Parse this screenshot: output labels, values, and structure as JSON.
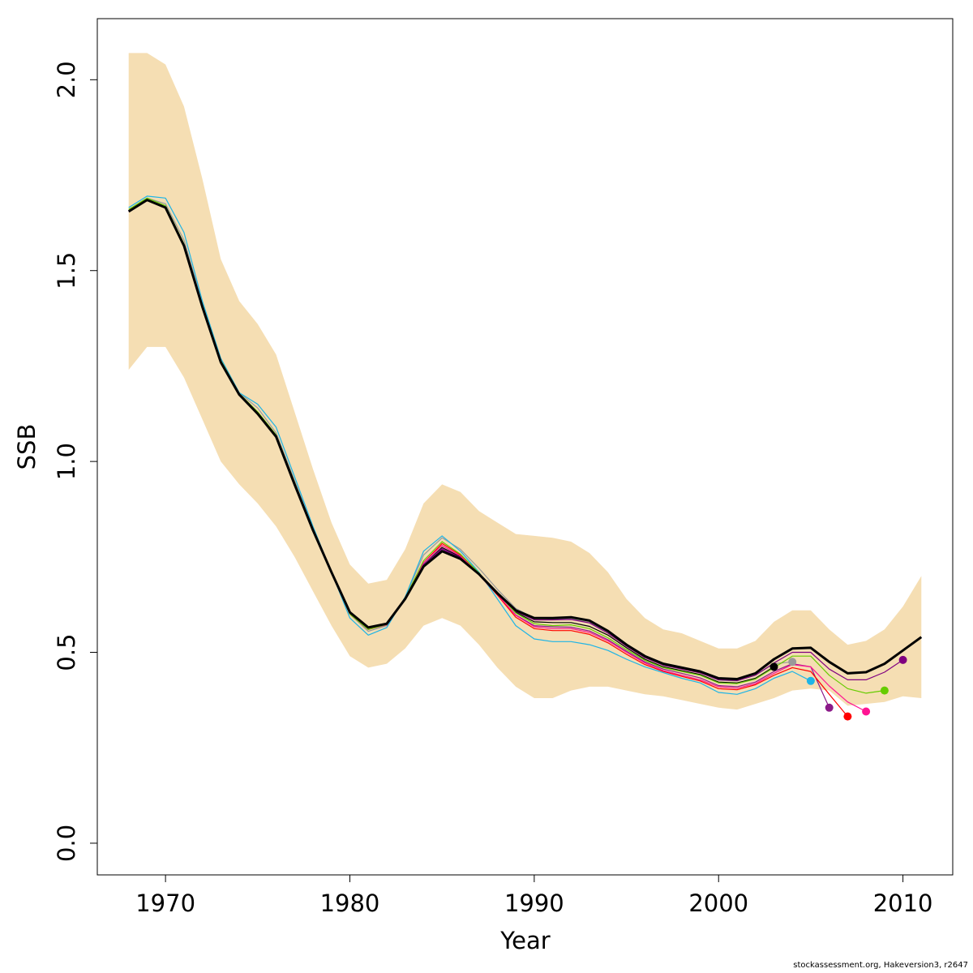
{
  "chart_data": {
    "type": "line",
    "title": "",
    "xlabel": "Year",
    "ylabel": "SSB",
    "xlim": [
      1966.3,
      2012.7
    ],
    "ylim": [
      -0.083,
      2.16
    ],
    "x_ticks": [
      1970,
      1980,
      1990,
      2000,
      2010
    ],
    "y_ticks": [
      0.0,
      0.5,
      1.0,
      1.5,
      2.0
    ],
    "y_tick_labels": [
      "0.0",
      "0.5",
      "1.0",
      "1.5",
      "2.0"
    ],
    "grid": false,
    "legend": "none",
    "band": {
      "color": "#F5DEB3",
      "years": [
        1968,
        1969,
        1970,
        1971,
        1972,
        1973,
        1974,
        1975,
        1976,
        1977,
        1978,
        1979,
        1980,
        1981,
        1982,
        1983,
        1984,
        1985,
        1986,
        1987,
        1988,
        1989,
        1990,
        1991,
        1992,
        1993,
        1994,
        1995,
        1996,
        1997,
        1998,
        1999,
        2000,
        2001,
        2002,
        2003,
        2004,
        2005,
        2006,
        2007,
        2008,
        2009,
        2010,
        2011
      ],
      "upper": [
        2.07,
        2.07,
        2.04,
        1.93,
        1.74,
        1.53,
        1.42,
        1.36,
        1.28,
        1.13,
        0.98,
        0.84,
        0.73,
        0.68,
        0.69,
        0.77,
        0.89,
        0.94,
        0.92,
        0.87,
        0.84,
        0.81,
        0.805,
        0.8,
        0.79,
        0.76,
        0.71,
        0.64,
        0.59,
        0.56,
        0.55,
        0.53,
        0.51,
        0.51,
        0.53,
        0.58,
        0.61,
        0.61,
        0.56,
        0.52,
        0.53,
        0.56,
        0.62,
        0.7
      ],
      "lower": [
        1.24,
        1.3,
        1.3,
        1.22,
        1.11,
        1.0,
        0.94,
        0.89,
        0.83,
        0.75,
        0.66,
        0.57,
        0.49,
        0.46,
        0.47,
        0.51,
        0.57,
        0.59,
        0.57,
        0.52,
        0.46,
        0.41,
        0.38,
        0.38,
        0.4,
        0.41,
        0.41,
        0.4,
        0.39,
        0.385,
        0.375,
        0.365,
        0.355,
        0.35,
        0.365,
        0.38,
        0.4,
        0.405,
        0.4,
        0.36,
        0.365,
        0.37,
        0.385,
        0.38
      ]
    },
    "series": [
      {
        "color": "#000000",
        "width": 3,
        "end_marker": true,
        "values": [
          1.655,
          1.685,
          1.665,
          1.565,
          1.405,
          1.26,
          1.175,
          1.125,
          1.065,
          0.94,
          0.82,
          0.71,
          0.605,
          0.565,
          0.575,
          0.64,
          0.725,
          0.765,
          0.745,
          0.705,
          0.655,
          0.61,
          0.59,
          0.59,
          0.592,
          0.583,
          0.556,
          0.52,
          0.49,
          0.47,
          0.46,
          0.45,
          0.432,
          0.43,
          0.445,
          0.482,
          0.51,
          0.512,
          0.475,
          0.445,
          0.448,
          0.47,
          0.505,
          0.54
        ]
      },
      {
        "color": "#000000",
        "width": 1.2,
        "end_marker": true,
        "values": [
          1.655,
          1.685,
          1.665,
          1.565,
          1.405,
          1.26,
          1.175,
          1.125,
          1.065,
          0.94,
          0.82,
          0.71,
          0.605,
          0.565,
          0.575,
          0.64,
          0.73,
          0.775,
          0.75,
          0.705,
          0.655,
          0.605,
          0.58,
          0.578,
          0.578,
          0.568,
          0.545,
          0.512,
          0.482,
          0.462,
          0.452,
          0.442,
          0.422,
          0.42,
          0.432,
          0.462
        ]
      },
      {
        "color": "#999999",
        "width": 1.2,
        "end_marker": true,
        "values": [
          1.66,
          1.69,
          1.675,
          1.58,
          1.415,
          1.27,
          1.18,
          1.14,
          1.075,
          0.95,
          0.825,
          0.71,
          0.6,
          0.555,
          0.57,
          0.645,
          0.755,
          0.8,
          0.77,
          0.72,
          0.665,
          0.615,
          0.59,
          0.587,
          0.588,
          0.578,
          0.553,
          0.518,
          0.488,
          0.467,
          0.457,
          0.447,
          0.427,
          0.425,
          0.44,
          0.47,
          0.475
        ]
      },
      {
        "color": "#1EB4E6",
        "width": 1.2,
        "end_marker": true,
        "values": [
          1.665,
          1.695,
          1.69,
          1.6,
          1.42,
          1.27,
          1.18,
          1.15,
          1.09,
          0.96,
          0.83,
          0.71,
          0.59,
          0.545,
          0.565,
          0.645,
          0.765,
          0.805,
          0.765,
          0.71,
          0.64,
          0.57,
          0.535,
          0.528,
          0.528,
          0.52,
          0.505,
          0.482,
          0.462,
          0.447,
          0.432,
          0.42,
          0.395,
          0.39,
          0.405,
          0.432,
          0.45,
          0.425
        ]
      },
      {
        "color": "#8B1A89",
        "width": 1.2,
        "end_marker": true,
        "values": [
          1.655,
          1.685,
          1.665,
          1.565,
          1.405,
          1.26,
          1.175,
          1.125,
          1.065,
          0.94,
          0.82,
          0.71,
          0.605,
          0.56,
          0.572,
          0.64,
          0.73,
          0.77,
          0.745,
          0.703,
          0.65,
          0.598,
          0.57,
          0.567,
          0.566,
          0.556,
          0.533,
          0.503,
          0.475,
          0.456,
          0.445,
          0.433,
          0.413,
          0.41,
          0.422,
          0.45,
          0.47,
          0.462,
          0.355
        ]
      },
      {
        "color": "#FF0000",
        "width": 1.2,
        "end_marker": true,
        "values": [
          1.655,
          1.685,
          1.665,
          1.565,
          1.405,
          1.26,
          1.175,
          1.125,
          1.065,
          0.94,
          0.82,
          0.71,
          0.6,
          0.56,
          0.572,
          0.64,
          0.735,
          0.785,
          0.755,
          0.705,
          0.65,
          0.592,
          0.562,
          0.557,
          0.557,
          0.547,
          0.525,
          0.495,
          0.468,
          0.45,
          0.437,
          0.425,
          0.405,
          0.402,
          0.415,
          0.44,
          0.46,
          0.45,
          0.39,
          0.332
        ]
      },
      {
        "color": "#FF1493",
        "width": 1.2,
        "end_marker": true,
        "values": [
          1.655,
          1.685,
          1.665,
          1.565,
          1.405,
          1.26,
          1.175,
          1.125,
          1.065,
          0.94,
          0.82,
          0.71,
          0.6,
          0.56,
          0.572,
          0.64,
          0.735,
          0.78,
          0.752,
          0.705,
          0.652,
          0.597,
          0.567,
          0.562,
          0.562,
          0.552,
          0.53,
          0.5,
          0.472,
          0.452,
          0.44,
          0.428,
          0.41,
          0.406,
          0.418,
          0.445,
          0.468,
          0.462,
          0.412,
          0.37,
          0.345
        ]
      },
      {
        "color": "#66CC00",
        "width": 1.2,
        "end_marker": true,
        "values": [
          1.66,
          1.69,
          1.67,
          1.57,
          1.41,
          1.265,
          1.178,
          1.13,
          1.07,
          0.945,
          0.823,
          0.71,
          0.6,
          0.56,
          0.573,
          0.642,
          0.74,
          0.79,
          0.757,
          0.708,
          0.655,
          0.603,
          0.575,
          0.57,
          0.572,
          0.562,
          0.538,
          0.507,
          0.479,
          0.46,
          0.45,
          0.44,
          0.42,
          0.418,
          0.43,
          0.46,
          0.49,
          0.49,
          0.44,
          0.405,
          0.393,
          0.4
        ]
      },
      {
        "color": "#800080",
        "width": 1.2,
        "end_marker": true,
        "values": [
          1.655,
          1.685,
          1.665,
          1.565,
          1.405,
          1.26,
          1.175,
          1.125,
          1.065,
          0.94,
          0.82,
          0.71,
          0.605,
          0.565,
          0.575,
          0.64,
          0.73,
          0.772,
          0.748,
          0.705,
          0.654,
          0.607,
          0.585,
          0.585,
          0.586,
          0.577,
          0.55,
          0.516,
          0.486,
          0.466,
          0.456,
          0.446,
          0.428,
          0.426,
          0.44,
          0.472,
          0.5,
          0.5,
          0.456,
          0.428,
          0.428,
          0.448,
          0.48
        ]
      }
    ]
  },
  "credit_text": "stockassessment.org, Hakeversion3, r2647"
}
